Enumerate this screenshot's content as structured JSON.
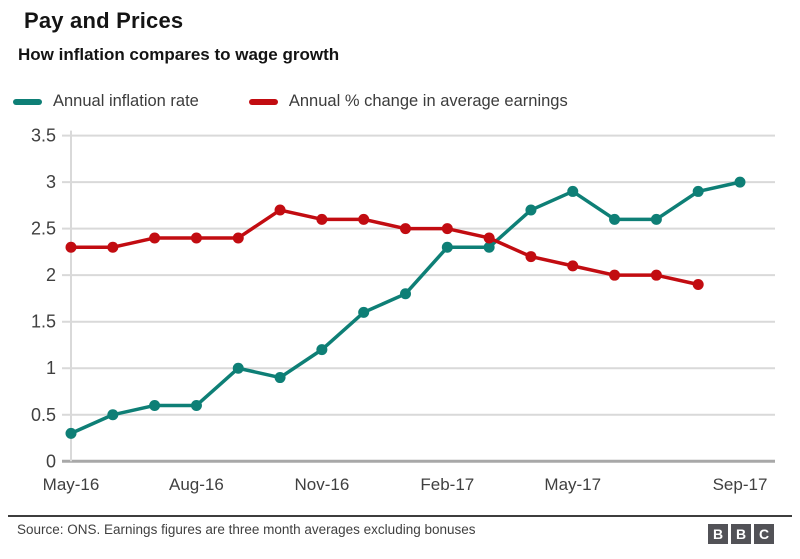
{
  "header": {
    "title": "Pay and Prices",
    "subtitle": "How inflation compares to wage growth"
  },
  "legend": [
    {
      "label": "Annual inflation rate",
      "color": "#0e7f76"
    },
    {
      "label": "Annual % change in average earnings",
      "color": "#c20c11"
    }
  ],
  "chart_data": {
    "type": "line",
    "x": [
      "May-16",
      "Jun-16",
      "Jul-16",
      "Aug-16",
      "Sep-16",
      "Oct-16",
      "Nov-16",
      "Dec-16",
      "Jan-17",
      "Feb-17",
      "Mar-17",
      "Apr-17",
      "May-17",
      "Jun-17",
      "Jul-17",
      "Aug-17",
      "Sep-17"
    ],
    "x_tick_labels": [
      "May-16",
      "Aug-16",
      "Nov-16",
      "Feb-17",
      "May-17",
      "Sep-17"
    ],
    "series": [
      {
        "name": "Annual inflation rate",
        "color": "#0e7f76",
        "values": [
          0.3,
          0.5,
          0.6,
          0.6,
          1.0,
          0.9,
          1.2,
          1.6,
          1.8,
          2.3,
          2.3,
          2.7,
          2.9,
          2.6,
          2.6,
          2.9,
          3.0
        ]
      },
      {
        "name": "Annual % change in average earnings",
        "color": "#c20c11",
        "values": [
          2.3,
          2.3,
          2.4,
          2.4,
          2.4,
          2.7,
          2.6,
          2.6,
          2.5,
          2.5,
          2.4,
          2.2,
          2.1,
          2.0,
          2.0,
          1.9
        ]
      }
    ],
    "ylim": [
      0,
      3.5
    ],
    "yticks": [
      0,
      0.5,
      1,
      1.5,
      2,
      2.5,
      3,
      3.5
    ],
    "grid": true,
    "legend_position": "top",
    "grid_color": "#d9d9d9",
    "zero_line_color": "#a8a8a8",
    "axis_label_color": "#404040"
  },
  "footer": {
    "source": "Source: ONS. Earnings figures are three month averages excluding bonuses",
    "logo_letters": [
      "B",
      "B",
      "C"
    ]
  }
}
